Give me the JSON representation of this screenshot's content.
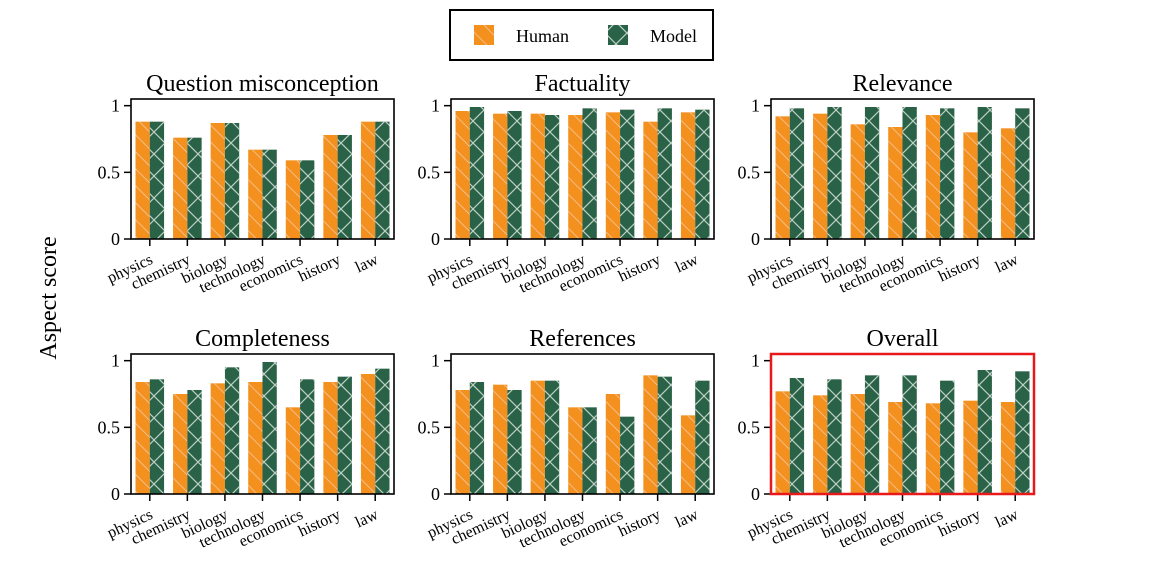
{
  "ylabel": "Aspect score",
  "legend": [
    {
      "label": "Human",
      "color": "#F4901E",
      "pattern": "hatch-diagonal"
    },
    {
      "label": "Model",
      "color": "#2A6247",
      "pattern": "hatch-cross"
    }
  ],
  "colors": {
    "human": "#F4901E",
    "model": "#2A6247",
    "hatch": "#F2C394",
    "model_hatch": "#BCCFC4",
    "highlight": "#E8191A"
  },
  "chart_data": [
    {
      "type": "bar",
      "title": "Question misconception",
      "categories": [
        "physics",
        "chemistry",
        "biology",
        "technology",
        "economics",
        "history",
        "law"
      ],
      "series": [
        {
          "name": "Human",
          "values": [
            0.88,
            0.76,
            0.87,
            0.67,
            0.59,
            0.78,
            0.88
          ]
        },
        {
          "name": "Model",
          "values": [
            0.88,
            0.76,
            0.87,
            0.67,
            0.59,
            0.78,
            0.88
          ]
        }
      ],
      "ylim": [
        0,
        1.05
      ],
      "yticks": [
        "0",
        "0.5",
        "1"
      ],
      "highlight": false
    },
    {
      "type": "bar",
      "title": "Factuality",
      "categories": [
        "physics",
        "chemistry",
        "biology",
        "technology",
        "economics",
        "history",
        "law"
      ],
      "series": [
        {
          "name": "Human",
          "values": [
            0.96,
            0.94,
            0.94,
            0.93,
            0.95,
            0.88,
            0.95
          ]
        },
        {
          "name": "Model",
          "values": [
            0.99,
            0.96,
            0.93,
            0.98,
            0.97,
            0.98,
            0.97
          ]
        }
      ],
      "ylim": [
        0,
        1.05
      ],
      "yticks": [
        "0",
        "0.5",
        "1"
      ],
      "highlight": false
    },
    {
      "type": "bar",
      "title": "Relevance",
      "categories": [
        "physics",
        "chemistry",
        "biology",
        "technology",
        "economics",
        "history",
        "law"
      ],
      "series": [
        {
          "name": "Human",
          "values": [
            0.92,
            0.94,
            0.86,
            0.84,
            0.93,
            0.8,
            0.83
          ]
        },
        {
          "name": "Model",
          "values": [
            0.98,
            0.99,
            0.99,
            0.99,
            0.98,
            0.99,
            0.98
          ]
        }
      ],
      "ylim": [
        0,
        1.05
      ],
      "yticks": [
        "0",
        "0.5",
        "1"
      ],
      "highlight": false
    },
    {
      "type": "bar",
      "title": "Completeness",
      "categories": [
        "physics",
        "chemistry",
        "biology",
        "technology",
        "economics",
        "history",
        "law"
      ],
      "series": [
        {
          "name": "Human",
          "values": [
            0.84,
            0.75,
            0.83,
            0.84,
            0.65,
            0.84,
            0.9
          ]
        },
        {
          "name": "Model",
          "values": [
            0.86,
            0.78,
            0.95,
            0.99,
            0.86,
            0.88,
            0.94
          ]
        }
      ],
      "ylim": [
        0,
        1.05
      ],
      "yticks": [
        "0",
        "0.5",
        "1"
      ],
      "highlight": false
    },
    {
      "type": "bar",
      "title": "References",
      "categories": [
        "physics",
        "chemistry",
        "biology",
        "technology",
        "economics",
        "history",
        "law"
      ],
      "series": [
        {
          "name": "Human",
          "values": [
            0.78,
            0.82,
            0.85,
            0.65,
            0.75,
            0.89,
            0.59
          ]
        },
        {
          "name": "Model",
          "values": [
            0.84,
            0.78,
            0.85,
            0.65,
            0.58,
            0.88,
            0.85
          ]
        }
      ],
      "ylim": [
        0,
        1.05
      ],
      "yticks": [
        "0",
        "0.5",
        "1"
      ],
      "highlight": false
    },
    {
      "type": "bar",
      "title": "Overall",
      "categories": [
        "physics",
        "chemistry",
        "biology",
        "technology",
        "economics",
        "history",
        "law"
      ],
      "series": [
        {
          "name": "Human",
          "values": [
            0.77,
            0.74,
            0.75,
            0.69,
            0.68,
            0.7,
            0.69
          ]
        },
        {
          "name": "Model",
          "values": [
            0.87,
            0.86,
            0.89,
            0.89,
            0.85,
            0.93,
            0.92
          ]
        }
      ],
      "ylim": [
        0,
        1.05
      ],
      "yticks": [
        "0",
        "0.5",
        "1"
      ],
      "highlight": true
    }
  ]
}
